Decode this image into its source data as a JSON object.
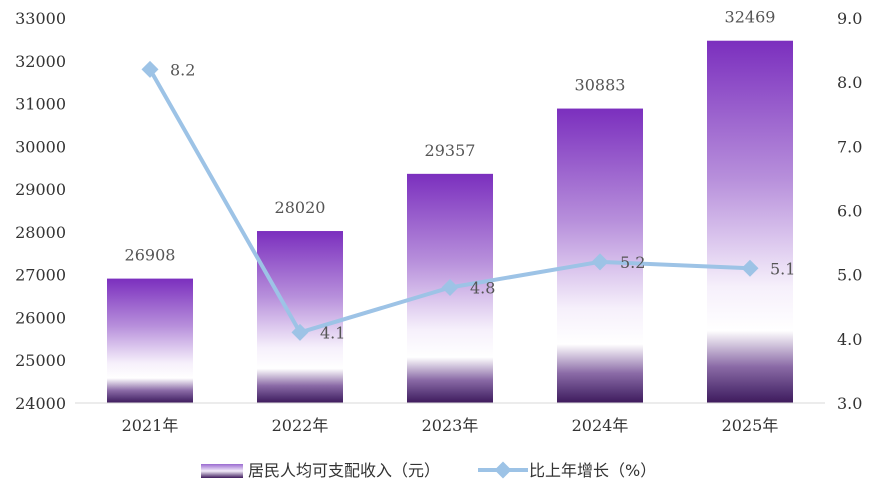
{
  "chart_data": {
    "type": "bar",
    "categories": [
      "2021年",
      "2022年",
      "2023年",
      "2024年",
      "2025年"
    ],
    "series": [
      {
        "name": "居民人均可支配收入（元）",
        "type": "bar",
        "axis": "left",
        "values": [
          26908,
          28020,
          29357,
          30883,
          32469
        ],
        "labels": [
          "26908",
          "28020",
          "29357",
          "30883",
          "32469"
        ]
      },
      {
        "name": "比上年增长（%）",
        "type": "line",
        "axis": "right",
        "values": [
          8.2,
          4.1,
          4.8,
          5.2,
          5.1
        ],
        "labels": [
          "8.2",
          "4.1",
          "4.8",
          "5.2",
          "5.1"
        ]
      }
    ],
    "y_left": {
      "min": 24000,
      "max": 33000,
      "ticks": [
        "24000",
        "25000",
        "26000",
        "27000",
        "28000",
        "29000",
        "30000",
        "31000",
        "32000",
        "33000"
      ]
    },
    "y_right": {
      "min": 3.0,
      "max": 9.0,
      "ticks": [
        "3.0",
        "4.0",
        "5.0",
        "6.0",
        "7.0",
        "8.0",
        "9.0"
      ]
    },
    "grid": false,
    "legend_position": "bottom",
    "colors": {
      "bar_top": "#7b2fbe",
      "bar_mid": "#f6f0fb",
      "bar_base": "#3e1a5c",
      "line": "#9dc3e6",
      "marker": "#9dc3e6"
    }
  }
}
